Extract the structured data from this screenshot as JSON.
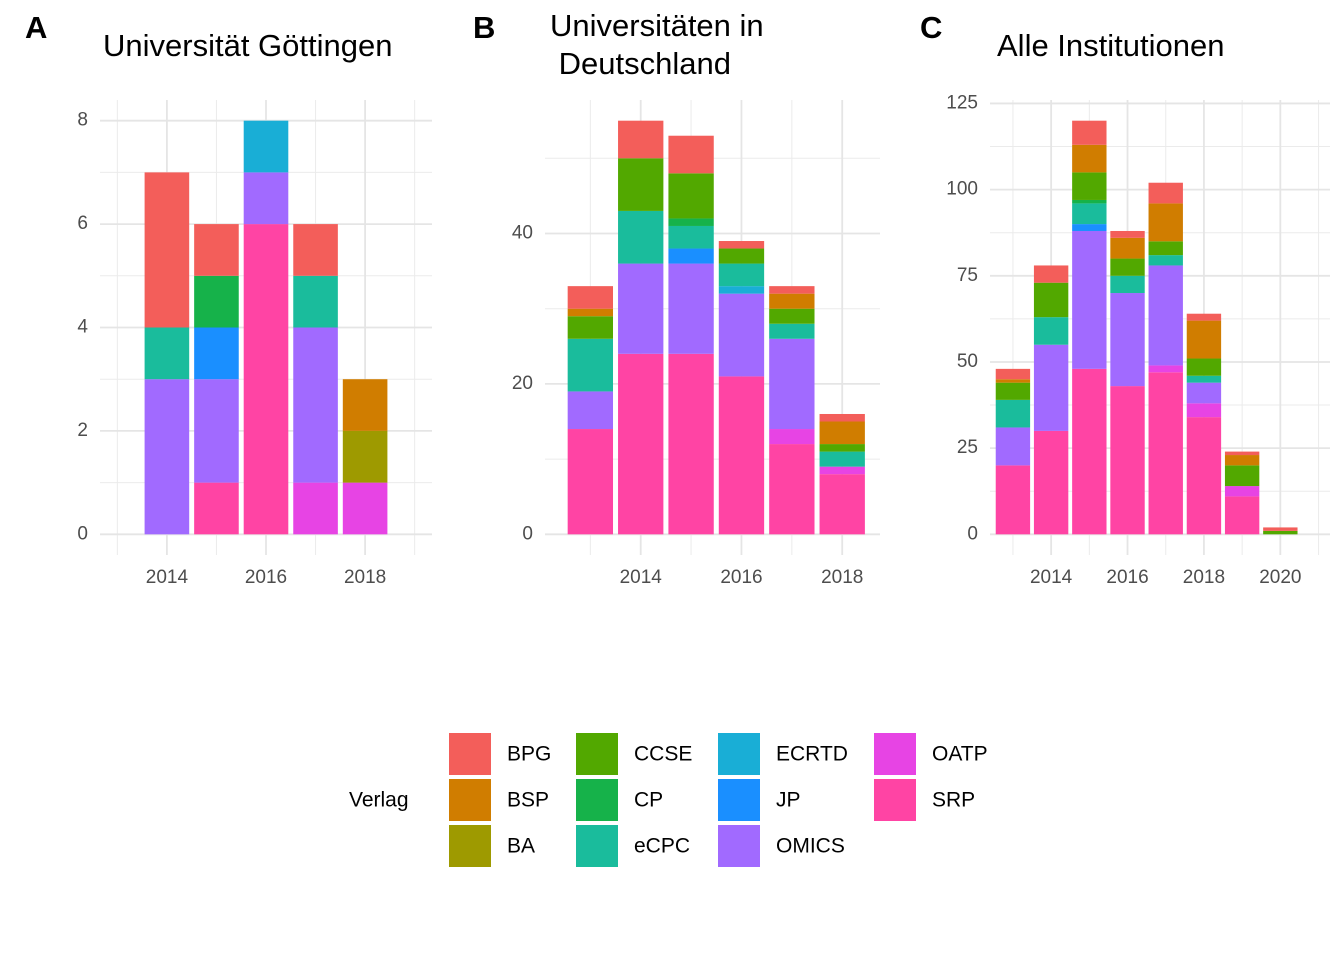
{
  "legend": {
    "title": "Verlag",
    "entries": [
      {
        "name": "BPG",
        "color": "#F35E5A"
      },
      {
        "name": "BSP",
        "color": "#D07D00"
      },
      {
        "name": "BA",
        "color": "#9E9A00"
      },
      {
        "name": "CCSE",
        "color": "#52A800"
      },
      {
        "name": "CP",
        "color": "#16B24A"
      },
      {
        "name": "eCPC",
        "color": "#1ABC9C"
      },
      {
        "name": "ECRTD",
        "color": "#19AED6"
      },
      {
        "name": "JP",
        "color": "#1A8FFF"
      },
      {
        "name": "OMICS",
        "color": "#A16AFF"
      },
      {
        "name": "OATP",
        "color": "#E744E4"
      },
      {
        "name": "SRP",
        "color": "#FF44A4"
      }
    ]
  },
  "chart_data": [
    {
      "type": "bar",
      "stacked": true,
      "panel": "A",
      "title": "Universität Göttingen",
      "x": [
        2014,
        2015,
        2016,
        2017,
        2018
      ],
      "xlim": [
        2012.65,
        2019.35
      ],
      "xticks": [
        2014,
        2016,
        2018
      ],
      "ylim": [
        -0.4,
        8.4
      ],
      "yticks": [
        0,
        2,
        4,
        6,
        8
      ],
      "grid": true,
      "series": [
        {
          "values": [
            3,
            1,
            0,
            1,
            0
          ]
        },
        {
          "values": [
            0,
            0,
            0,
            0,
            1
          ]
        },
        {
          "values": [
            0,
            0,
            0,
            0,
            1
          ]
        },
        {
          "values": [
            0,
            0,
            0,
            0,
            0
          ]
        },
        {
          "values": [
            0,
            1,
            0,
            0,
            0
          ]
        },
        {
          "values": [
            1,
            0,
            0,
            1,
            0
          ]
        },
        {
          "values": [
            0,
            0,
            1,
            0,
            0
          ]
        },
        {
          "values": [
            0,
            1,
            0,
            0,
            0
          ]
        },
        {
          "values": [
            3,
            2,
            1,
            3,
            0
          ]
        },
        {
          "values": [
            0,
            0,
            0,
            1,
            1
          ]
        },
        {
          "values": [
            0,
            1,
            6,
            0,
            0
          ]
        }
      ]
    },
    {
      "type": "bar",
      "stacked": true,
      "panel": "B",
      "title": "Universitäten in\n Deutschland",
      "x": [
        2013,
        2014,
        2015,
        2016,
        2017,
        2018
      ],
      "xlim": [
        2012.1,
        2018.75
      ],
      "xticks": [
        2014,
        2016,
        2018
      ],
      "ylim": [
        -2.75,
        57.75
      ],
      "yticks": [
        0,
        20,
        40
      ],
      "grid": true,
      "series": [
        {
          "values": [
            3,
            5,
            5,
            1,
            1,
            1
          ]
        },
        {
          "values": [
            1,
            0,
            0,
            0,
            2,
            3
          ]
        },
        {
          "values": [
            0,
            0,
            0,
            0,
            0,
            0
          ]
        },
        {
          "values": [
            3,
            7,
            6,
            2,
            2,
            1
          ]
        },
        {
          "values": [
            0,
            0,
            1,
            0,
            0,
            0
          ]
        },
        {
          "values": [
            7,
            7,
            3,
            3,
            2,
            2
          ]
        },
        {
          "values": [
            0,
            0,
            0,
            1,
            0,
            0
          ]
        },
        {
          "values": [
            0,
            0,
            2,
            0,
            0,
            0
          ]
        },
        {
          "values": [
            5,
            12,
            12,
            11,
            12,
            0
          ]
        },
        {
          "values": [
            0,
            0,
            0,
            0,
            2,
            1
          ]
        },
        {
          "values": [
            14,
            24,
            24,
            21,
            12,
            8
          ]
        }
      ]
    },
    {
      "type": "bar",
      "stacked": true,
      "panel": "C",
      "title": "Alle Institutionen",
      "x": [
        2013,
        2014,
        2015,
        2016,
        2017,
        2018,
        2019,
        2020
      ],
      "xlim": [
        2012.4,
        2021.3
      ],
      "xticks": [
        2014,
        2016,
        2018,
        2020
      ],
      "ylim": [
        -6,
        126
      ],
      "yticks": [
        0,
        25,
        50,
        75,
        100,
        125
      ],
      "grid": true,
      "series": [
        {
          "values": [
            3,
            5,
            7,
            2,
            6,
            2,
            1,
            1
          ]
        },
        {
          "values": [
            1,
            0,
            8,
            6,
            11,
            11,
            3,
            0
          ]
        },
        {
          "values": [
            0,
            0,
            0,
            0,
            0,
            0,
            0,
            0
          ]
        },
        {
          "values": [
            5,
            10,
            8,
            5,
            4,
            5,
            6,
            1
          ]
        },
        {
          "values": [
            0,
            0,
            1,
            0,
            0,
            0,
            0,
            0
          ]
        },
        {
          "values": [
            8,
            8,
            6,
            5,
            3,
            2,
            0,
            0
          ]
        },
        {
          "values": [
            0,
            0,
            0,
            0,
            0,
            0,
            0,
            0
          ]
        },
        {
          "values": [
            0,
            0,
            2,
            0,
            0,
            0,
            0,
            0
          ]
        },
        {
          "values": [
            11,
            25,
            40,
            27,
            29,
            6,
            0,
            0
          ]
        },
        {
          "values": [
            0,
            0,
            0,
            0,
            2,
            4,
            3,
            0
          ]
        },
        {
          "values": [
            20,
            30,
            48,
            43,
            47,
            34,
            11,
            0
          ]
        }
      ]
    }
  ]
}
